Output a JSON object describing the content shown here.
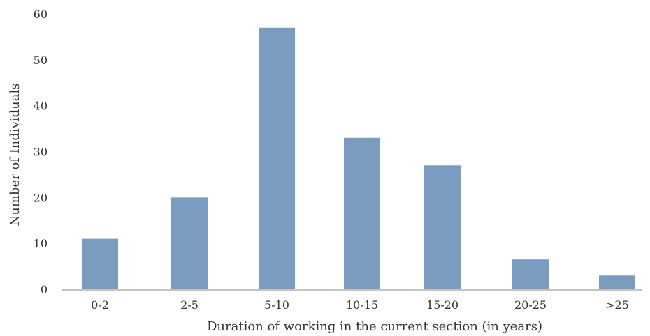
{
  "chart_data": {
    "type": "bar",
    "title": "",
    "xlabel": "Duration of working in the current section (in years)",
    "ylabel": "Number of Individuals",
    "categories": [
      "0-2",
      "2-5",
      "5-10",
      "10-15",
      "15-20",
      "20-25",
      ">25"
    ],
    "values": [
      11,
      20,
      57,
      33,
      27,
      6.5,
      3
    ],
    "ylim": [
      0,
      60
    ],
    "yticks": [
      "0",
      "10",
      "20",
      "30",
      "40",
      "50",
      "60"
    ],
    "grid": false,
    "legend": "none",
    "bar_color": "#7a9cc1",
    "axis_color": "#b0b0b0"
  }
}
